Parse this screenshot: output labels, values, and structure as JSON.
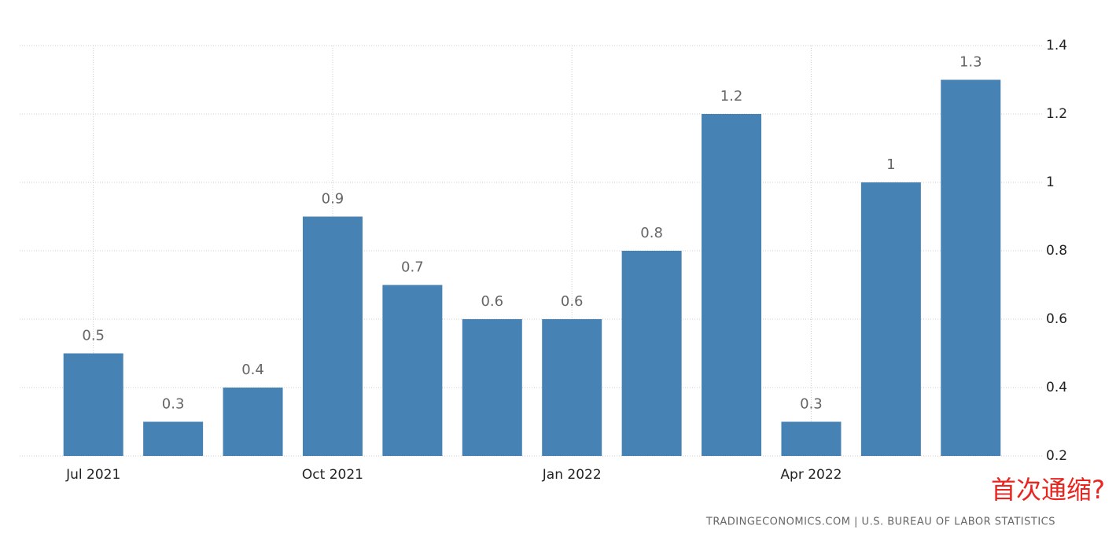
{
  "chart_data": {
    "type": "bar",
    "categories": [
      "Jul 2021",
      null,
      null,
      "Oct 2021",
      null,
      null,
      "Jan 2022",
      null,
      null,
      "Apr 2022",
      null,
      null
    ],
    "values": [
      0.5,
      0.3,
      0.4,
      0.9,
      0.7,
      0.6,
      0.6,
      0.8,
      1.2,
      0.3,
      1,
      1.3
    ],
    "color": "#4682b4",
    "ylim": [
      0.2,
      1.4
    ],
    "yticks": [
      0.2,
      0.4,
      0.6,
      0.8,
      1,
      1.2,
      1.4
    ],
    "grid": true,
    "annotation": "首次通缩?",
    "annotation_color": "#e8251f",
    "source": "TRADINGECONOMICS.COM | U.S. BUREAU OF LABOR STATISTICS"
  }
}
